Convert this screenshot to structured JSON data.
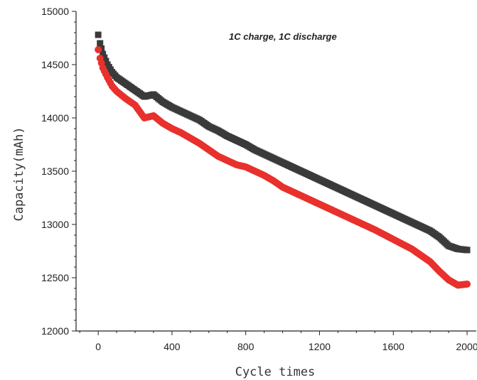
{
  "chart_data": {
    "type": "scatter",
    "xlabel": "Cycle times",
    "ylabel": "Capacity(mAh)",
    "annotation": "1C charge, 1C discharge",
    "xlim": [
      -120,
      2050
    ],
    "ylim": [
      12000,
      15000
    ],
    "xticks": [
      0,
      400,
      800,
      1200,
      1600,
      2000
    ],
    "yticks": [
      12000,
      12500,
      13000,
      13500,
      14000,
      14500,
      15000
    ],
    "grid": false,
    "series": [
      {
        "color": "#3a3a3a",
        "marker": "square",
        "x": [
          0,
          10,
          25,
          50,
          75,
          100,
          150,
          200,
          250,
          300,
          350,
          400,
          450,
          500,
          550,
          600,
          650,
          700,
          750,
          800,
          850,
          900,
          950,
          1000,
          1100,
          1200,
          1300,
          1400,
          1500,
          1600,
          1700,
          1800,
          1850,
          1900,
          1950,
          2000
        ],
        "values": [
          14780,
          14700,
          14600,
          14500,
          14430,
          14380,
          14320,
          14260,
          14200,
          14220,
          14150,
          14100,
          14060,
          14020,
          13980,
          13920,
          13880,
          13830,
          13790,
          13750,
          13700,
          13660,
          13620,
          13580,
          13500,
          13420,
          13340,
          13260,
          13180,
          13100,
          13020,
          12940,
          12880,
          12800,
          12770,
          12760
        ]
      },
      {
        "color": "#e8302c",
        "marker": "circle",
        "x": [
          0,
          10,
          25,
          50,
          75,
          100,
          150,
          200,
          250,
          300,
          350,
          400,
          450,
          500,
          550,
          600,
          650,
          700,
          750,
          800,
          850,
          900,
          950,
          1000,
          1100,
          1200,
          1300,
          1400,
          1500,
          1600,
          1700,
          1800,
          1850,
          1900,
          1950,
          2000
        ],
        "values": [
          14640,
          14560,
          14470,
          14380,
          14300,
          14250,
          14180,
          14120,
          14000,
          14020,
          13950,
          13900,
          13860,
          13810,
          13760,
          13700,
          13640,
          13600,
          13560,
          13540,
          13500,
          13460,
          13410,
          13350,
          13270,
          13190,
          13110,
          13030,
          12950,
          12860,
          12770,
          12650,
          12560,
          12480,
          12430,
          12440
        ]
      }
    ]
  }
}
